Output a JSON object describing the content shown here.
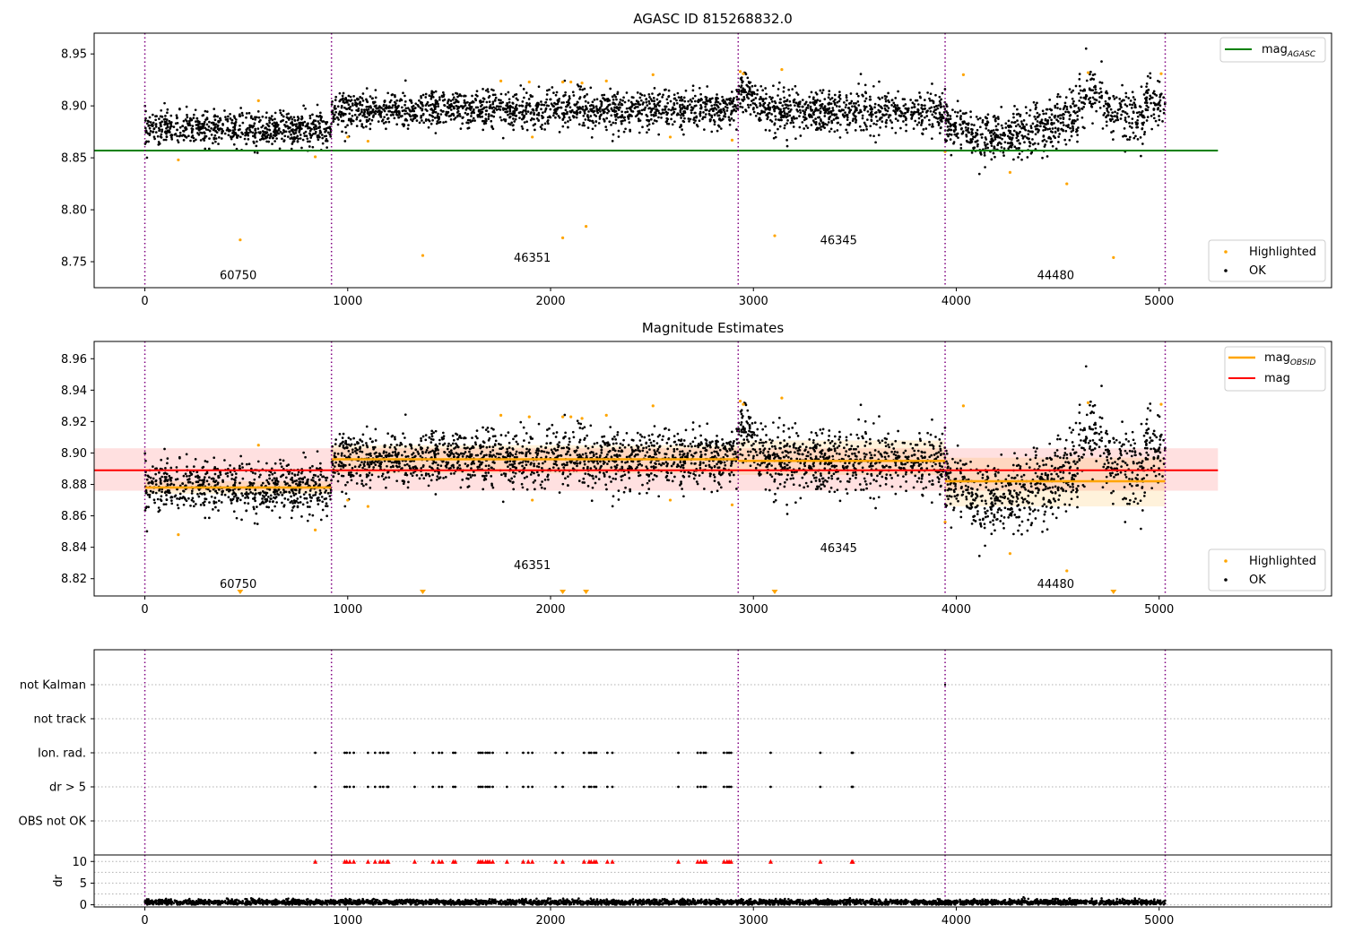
{
  "chart_data": [
    {
      "type": "scatter",
      "title": "AGASC ID 815268832.0",
      "xlim": [
        -250,
        5850
      ],
      "ylim": [
        8.725,
        8.97
      ],
      "xticks": [
        0,
        1000,
        2000,
        3000,
        4000,
        5000
      ],
      "yticks": [
        8.75,
        8.8,
        8.85,
        8.9,
        8.95
      ],
      "grid": false,
      "obsid_boundaries": [
        0,
        920,
        2925,
        3945,
        5030
      ],
      "obsids": [
        {
          "label": "60750",
          "x": 460,
          "y": 8.733
        },
        {
          "label": "46351",
          "x": 1910,
          "y": 8.75
        },
        {
          "label": "46345",
          "x": 3420,
          "y": 8.767
        },
        {
          "label": "44480",
          "x": 4490,
          "y": 8.733
        }
      ],
      "segments": [
        {
          "x": [
            0,
            920
          ],
          "mean": 8.878,
          "spread": 0.008
        },
        {
          "x": [
            920,
            2925
          ],
          "mean": 8.896,
          "spread": 0.009
        },
        {
          "x": [
            2925,
            3945
          ],
          "mean": 8.895,
          "spread": 0.01
        },
        {
          "x": [
            3945,
            5030
          ],
          "mean": 8.882,
          "spread": 0.012
        }
      ],
      "lines": [
        {
          "name": "mag_AGASC",
          "y": 8.857,
          "x": [
            -250,
            5290
          ],
          "color": "#008000"
        }
      ],
      "highlighted": [
        {
          "x": 165,
          "y": 8.848
        },
        {
          "x": 560,
          "y": 8.905
        },
        {
          "x": 470,
          "y": 8.771
        },
        {
          "x": 840,
          "y": 8.851
        },
        {
          "x": 1000,
          "y": 8.87
        },
        {
          "x": 1100,
          "y": 8.866
        },
        {
          "x": 1370,
          "y": 8.756
        },
        {
          "x": 1755,
          "y": 8.924
        },
        {
          "x": 1895,
          "y": 8.923
        },
        {
          "x": 1910,
          "y": 8.87
        },
        {
          "x": 2060,
          "y": 8.773
        },
        {
          "x": 2060,
          "y": 8.923
        },
        {
          "x": 2100,
          "y": 8.923
        },
        {
          "x": 2155,
          "y": 8.922
        },
        {
          "x": 2175,
          "y": 8.784
        },
        {
          "x": 2275,
          "y": 8.924
        },
        {
          "x": 2505,
          "y": 8.93
        },
        {
          "x": 2590,
          "y": 8.87
        },
        {
          "x": 2895,
          "y": 8.867
        },
        {
          "x": 2935,
          "y": 8.933
        },
        {
          "x": 2950,
          "y": 8.931
        },
        {
          "x": 3105,
          "y": 8.775
        },
        {
          "x": 3140,
          "y": 8.935
        },
        {
          "x": 3945,
          "y": 8.856
        },
        {
          "x": 4035,
          "y": 8.93
        },
        {
          "x": 4265,
          "y": 8.836
        },
        {
          "x": 4545,
          "y": 8.825
        },
        {
          "x": 4650,
          "y": 8.932
        },
        {
          "x": 4775,
          "y": 8.754
        },
        {
          "x": 5010,
          "y": 8.931
        }
      ],
      "legend": [
        {
          "label": "mag",
          "sub": "AGASC",
          "color": "#008000",
          "kind": "line",
          "position": "upper right"
        },
        {
          "label": "Highlighted",
          "color": "#ffa500",
          "kind": "point",
          "position": "lower right"
        },
        {
          "label": "OK",
          "color": "#000000",
          "kind": "point",
          "position": "lower right"
        }
      ]
    },
    {
      "type": "scatter",
      "title": "Magnitude Estimates",
      "xlim": [
        -250,
        5850
      ],
      "ylim": [
        8.809,
        8.971
      ],
      "xticks": [
        0,
        1000,
        2000,
        3000,
        4000,
        5000
      ],
      "yticks": [
        8.82,
        8.84,
        8.86,
        8.88,
        8.9,
        8.92,
        8.94,
        8.96
      ],
      "grid": false,
      "obsid_boundaries": [
        0,
        920,
        2925,
        3945,
        5030
      ],
      "obsids": [
        {
          "label": "60750",
          "x": 460,
          "y": 8.814
        },
        {
          "label": "46351",
          "x": 1910,
          "y": 8.826
        },
        {
          "label": "46345",
          "x": 3420,
          "y": 8.837
        },
        {
          "label": "44480",
          "x": 4490,
          "y": 8.814
        }
      ],
      "segments": [
        {
          "x": [
            0,
            920
          ],
          "mean": 8.878,
          "spread": 0.008
        },
        {
          "x": [
            920,
            2925
          ],
          "mean": 8.896,
          "spread": 0.009
        },
        {
          "x": [
            2925,
            3945
          ],
          "mean": 8.895,
          "spread": 0.01
        },
        {
          "x": [
            3945,
            5030
          ],
          "mean": 8.882,
          "spread": 0.012
        }
      ],
      "mag_obsid": [
        {
          "x": [
            0,
            920
          ],
          "y": 8.878,
          "band": [
            8.874,
            8.882
          ]
        },
        {
          "x": [
            920,
            2925
          ],
          "y": 8.896,
          "band": [
            8.887,
            8.905
          ]
        },
        {
          "x": [
            2925,
            3945
          ],
          "y": 8.895,
          "band": [
            8.886,
            8.908
          ]
        },
        {
          "x": [
            3945,
            5030
          ],
          "y": 8.882,
          "band": [
            8.866,
            8.897
          ]
        }
      ],
      "mag": {
        "y": 8.889,
        "band": [
          8.876,
          8.903
        ],
        "x": [
          -250,
          5290
        ]
      },
      "highlighted": [
        {
          "x": 165,
          "y": 8.848
        },
        {
          "x": 560,
          "y": 8.905
        },
        {
          "x": 840,
          "y": 8.851
        },
        {
          "x": 1000,
          "y": 8.87
        },
        {
          "x": 1100,
          "y": 8.866
        },
        {
          "x": 1755,
          "y": 8.924
        },
        {
          "x": 1895,
          "y": 8.923
        },
        {
          "x": 1910,
          "y": 8.87
        },
        {
          "x": 2060,
          "y": 8.923
        },
        {
          "x": 2100,
          "y": 8.923
        },
        {
          "x": 2155,
          "y": 8.922
        },
        {
          "x": 2275,
          "y": 8.924
        },
        {
          "x": 2505,
          "y": 8.93
        },
        {
          "x": 2590,
          "y": 8.87
        },
        {
          "x": 2895,
          "y": 8.867
        },
        {
          "x": 2935,
          "y": 8.933
        },
        {
          "x": 2950,
          "y": 8.931
        },
        {
          "x": 3140,
          "y": 8.935
        },
        {
          "x": 3945,
          "y": 8.856
        },
        {
          "x": 4035,
          "y": 8.93
        },
        {
          "x": 4265,
          "y": 8.836
        },
        {
          "x": 4545,
          "y": 8.825
        },
        {
          "x": 4650,
          "y": 8.932
        },
        {
          "x": 5010,
          "y": 8.931
        }
      ],
      "below_range_markers": [
        470,
        1370,
        2060,
        2175,
        3105,
        4775
      ],
      "legend": [
        {
          "label": "mag",
          "sub": "OBSID",
          "color": "#ffa500",
          "kind": "line",
          "position": "upper right"
        },
        {
          "label": "mag",
          "color": "#ff0000",
          "kind": "line",
          "position": "upper right"
        },
        {
          "label": "Highlighted",
          "color": "#ffa500",
          "kind": "point",
          "position": "lower right"
        },
        {
          "label": "OK",
          "color": "#000000",
          "kind": "point",
          "position": "lower right"
        }
      ]
    },
    {
      "type": "scatter",
      "xlim": [
        -250,
        5850
      ],
      "xticks": [
        0,
        1000,
        2000,
        3000,
        4000,
        5000
      ],
      "obsid_boundaries": [
        0,
        920,
        2925,
        3945,
        5030
      ],
      "flag_rows": [
        "not Kalman",
        "not track",
        "Ion. rad.",
        "dr > 5",
        "OBS not OK"
      ],
      "flag_x": [
        840,
        985,
        995,
        1010,
        1030,
        1100,
        1135,
        1160,
        1175,
        1195,
        1200,
        1330,
        1420,
        1450,
        1465,
        1520,
        1530,
        1645,
        1655,
        1665,
        1680,
        1690,
        1700,
        1715,
        1785,
        1865,
        1890,
        1910,
        2025,
        2060,
        2165,
        2190,
        2200,
        2215,
        2225,
        2280,
        2305,
        2630,
        2725,
        2740,
        2755,
        2765,
        2855,
        2870,
        2880,
        2890,
        3085,
        3330,
        3485,
        3490
      ],
      "not_kalman_x": [
        3945
      ],
      "dr": {
        "ylabel": "dr",
        "ylim": [
          -0.5,
          11.5
        ],
        "yticks": [
          0,
          5,
          10
        ],
        "typical": 0.6,
        "clip_marker_value": 10
      }
    }
  ]
}
